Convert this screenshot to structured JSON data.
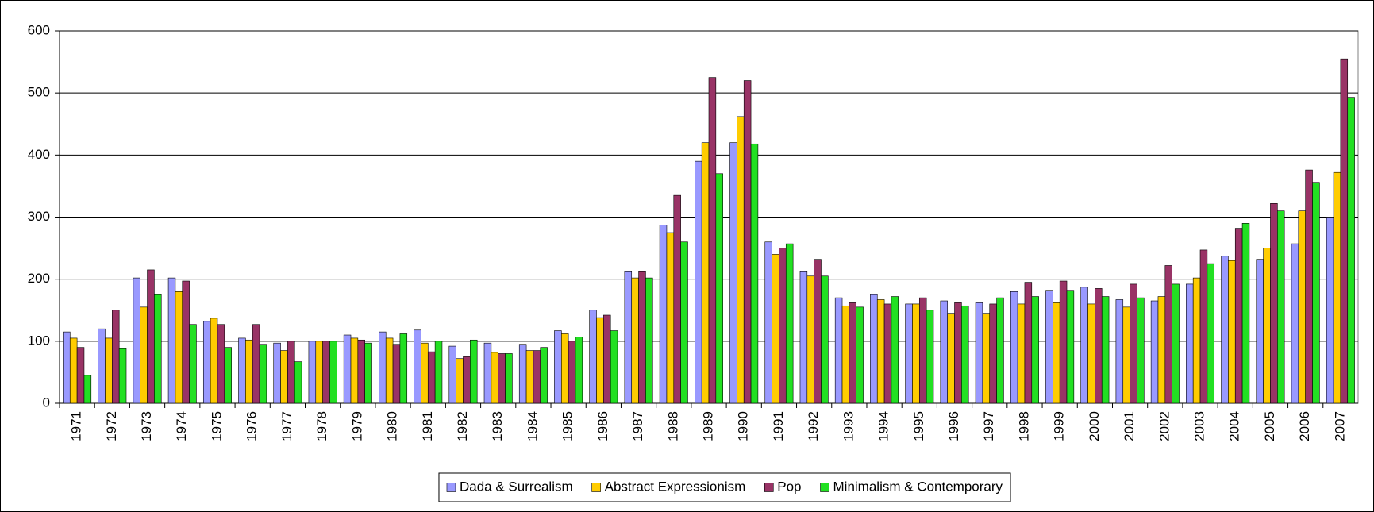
{
  "chart_data": {
    "type": "bar",
    "categories": [
      "1971",
      "1972",
      "1973",
      "1974",
      "1975",
      "1976",
      "1977",
      "1978",
      "1979",
      "1980",
      "1981",
      "1982",
      "1983",
      "1984",
      "1985",
      "1986",
      "1987",
      "1988",
      "1989",
      "1990",
      "1991",
      "1992",
      "1993",
      "1994",
      "1995",
      "1996",
      "1997",
      "1998",
      "1999",
      "2000",
      "2001",
      "2002",
      "2003",
      "2004",
      "2005",
      "2006",
      "2007"
    ],
    "series": [
      {
        "name": "Dada & Surrealism",
        "color": "#9999ff",
        "values": [
          115,
          120,
          202,
          202,
          132,
          105,
          97,
          100,
          110,
          115,
          118,
          92,
          97,
          95,
          117,
          150,
          212,
          287,
          390,
          420,
          260,
          212,
          170,
          175,
          160,
          165,
          162,
          180,
          182,
          187,
          167,
          165,
          192,
          237,
          232,
          257,
          300
        ]
      },
      {
        "name": "Abstract Expressionism",
        "color": "#ffcc00",
        "values": [
          105,
          105,
          155,
          180,
          137,
          102,
          85,
          100,
          105,
          105,
          97,
          72,
          82,
          85,
          112,
          138,
          202,
          275,
          420,
          462,
          240,
          205,
          157,
          167,
          160,
          145,
          145,
          160,
          162,
          160,
          155,
          172,
          202,
          230,
          250,
          310,
          372
        ]
      },
      {
        "name": "Pop",
        "color": "#993366",
        "values": [
          90,
          150,
          215,
          197,
          127,
          127,
          100,
          100,
          102,
          95,
          83,
          75,
          80,
          85,
          100,
          142,
          212,
          335,
          525,
          520,
          250,
          232,
          162,
          160,
          170,
          162,
          160,
          195,
          197,
          185,
          192,
          222,
          247,
          282,
          322,
          376,
          555
        ]
      },
      {
        "name": "Minimalism & Contemporary",
        "color": "#22e022",
        "values": [
          45,
          88,
          175,
          127,
          90,
          95,
          67,
          100,
          97,
          112,
          100,
          102,
          80,
          90,
          107,
          117,
          202,
          260,
          370,
          418,
          257,
          205,
          155,
          172,
          150,
          157,
          170,
          172,
          182,
          172,
          170,
          192,
          225,
          290,
          310,
          356,
          493
        ]
      }
    ],
    "ylim": [
      0,
      600
    ],
    "yticks": [
      0,
      100,
      200,
      300,
      400,
      500,
      600
    ],
    "grid": true,
    "legend": "bottom"
  }
}
